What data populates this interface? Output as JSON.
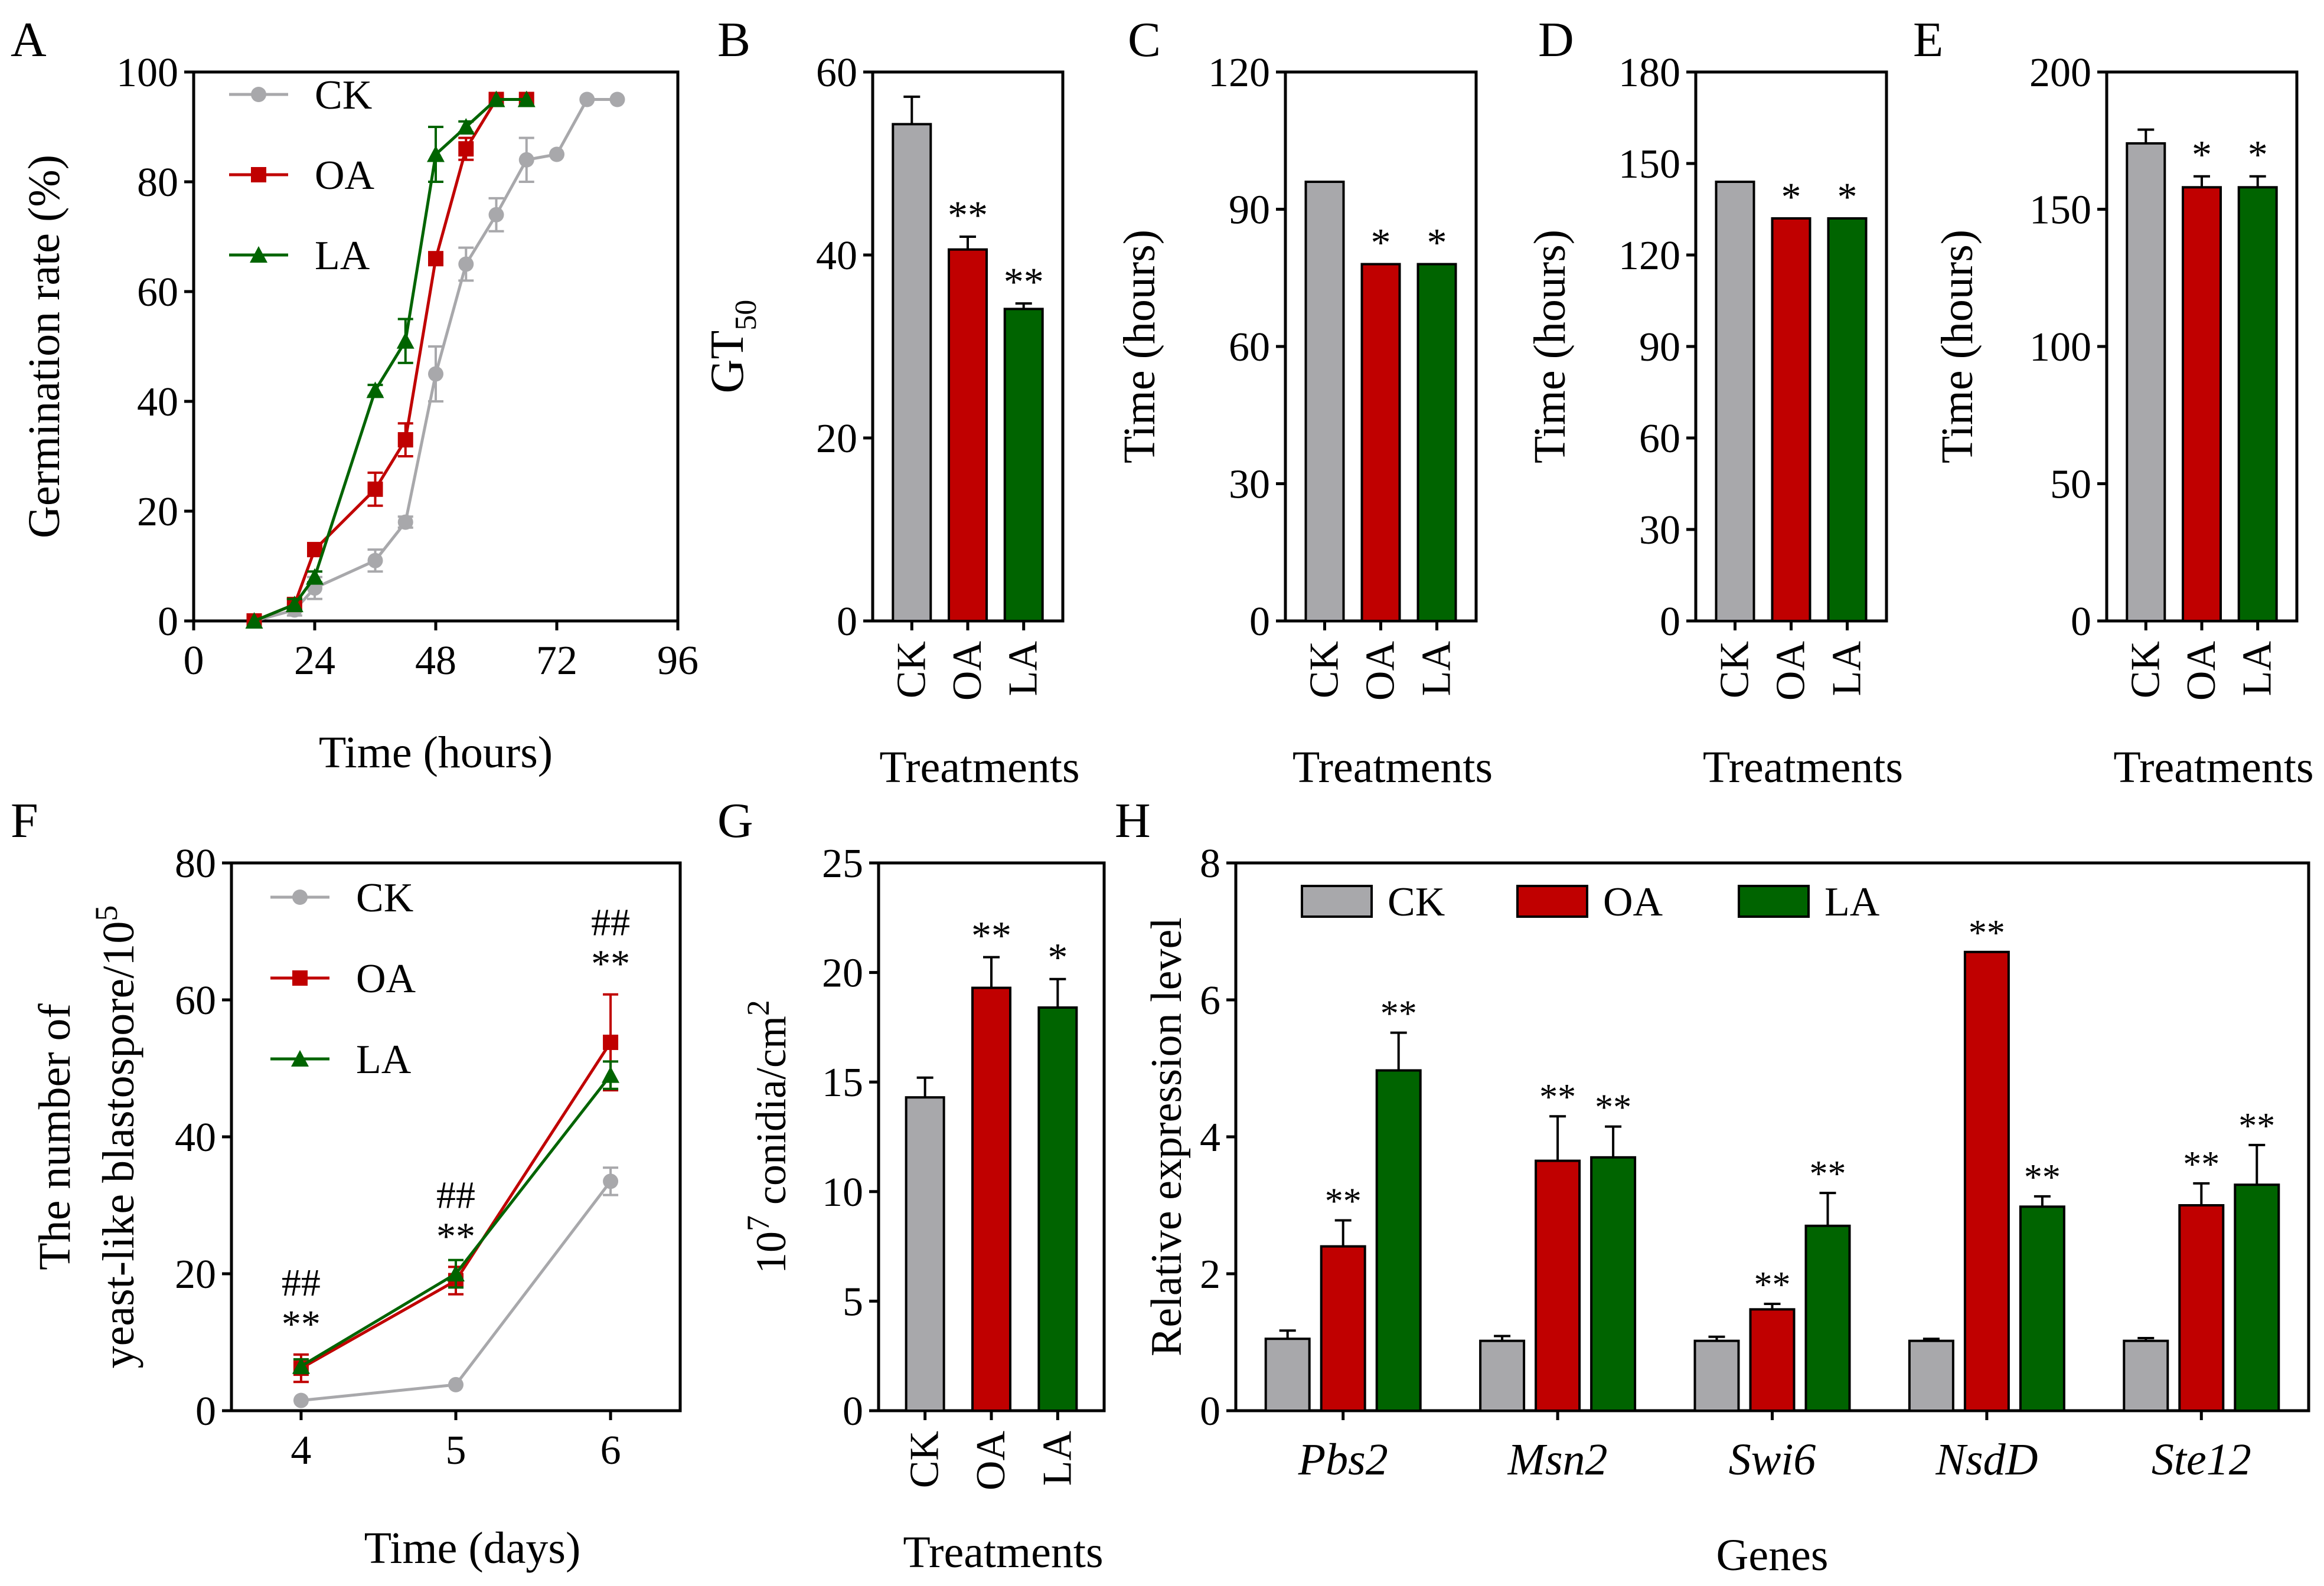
{
  "colors": {
    "CK": "#a8a8ab",
    "OA": "#c00000",
    "LA": "#006400",
    "axis": "#000000"
  },
  "chart_data": [
    {
      "id": "A",
      "type": "line",
      "panel_label": "A",
      "xlabel": "Time (hours)",
      "ylabel": "Germination rate (%)",
      "xlim": [
        0,
        96
      ],
      "ylim": [
        0,
        100
      ],
      "xticks": [
        0,
        24,
        48,
        72,
        96
      ],
      "xtick_labels": [
        "0",
        "24",
        "48",
        "72",
        "96"
      ],
      "yticks": [
        0,
        20,
        40,
        60,
        80,
        100
      ],
      "ytick_labels": [
        "0",
        "20",
        "40",
        "60",
        "80",
        "100"
      ],
      "legend": [
        "CK",
        "OA",
        "LA"
      ],
      "legend_position": "top-left",
      "series": [
        {
          "name": "CK",
          "marker": "circle",
          "x": [
            12,
            20,
            24,
            36,
            42,
            48,
            54,
            60,
            66,
            72,
            78,
            84
          ],
          "y": [
            0,
            2,
            6,
            11,
            18,
            45,
            65,
            74,
            84,
            85,
            95,
            95
          ],
          "err": [
            0,
            1,
            2,
            2,
            1,
            5,
            3,
            3,
            4,
            0,
            0,
            0
          ]
        },
        {
          "name": "OA",
          "marker": "square",
          "x": [
            12,
            20,
            24,
            36,
            42,
            48,
            54,
            60,
            66
          ],
          "y": [
            0,
            3,
            13,
            24,
            33,
            66,
            86,
            95,
            95
          ],
          "err": [
            0,
            1,
            1,
            3,
            3,
            0,
            2,
            0,
            0
          ]
        },
        {
          "name": "LA",
          "marker": "triangle",
          "x": [
            12,
            20,
            24,
            36,
            42,
            48,
            54,
            60,
            66
          ],
          "y": [
            0,
            3,
            8,
            42,
            51,
            85,
            90,
            95,
            95
          ],
          "err": [
            0,
            1,
            1,
            1,
            4,
            5,
            1,
            0,
            0
          ]
        }
      ]
    },
    {
      "id": "B",
      "type": "bar",
      "panel_label": "B",
      "xlabel": "Treatments",
      "ylabel_main": "GT",
      "ylabel_sub": "50",
      "ylim": [
        0,
        60
      ],
      "yticks": [
        0,
        20,
        40,
        60
      ],
      "ytick_labels": [
        "0",
        "20",
        "40",
        "60"
      ],
      "categories": [
        "CK",
        "OA",
        "LA"
      ],
      "values": [
        54.3,
        40.6,
        34.1
      ],
      "err": [
        3.0,
        1.4,
        0.6
      ],
      "annotations": [
        "",
        "**",
        "**"
      ]
    },
    {
      "id": "C",
      "type": "bar",
      "panel_label": "C",
      "xlabel": "Treatments",
      "ylabel": "Time (hours)",
      "ylim": [
        0,
        120
      ],
      "yticks": [
        0,
        30,
        60,
        90,
        120
      ],
      "ytick_labels": [
        "0",
        "30",
        "60",
        "90",
        "120"
      ],
      "categories": [
        "CK",
        "OA",
        "LA"
      ],
      "values": [
        96,
        78,
        78
      ],
      "err": [
        0,
        0,
        0
      ],
      "annotations": [
        "",
        "*",
        "*"
      ]
    },
    {
      "id": "D",
      "type": "bar",
      "panel_label": "D",
      "xlabel": "Treatments",
      "ylabel": "Time (hours)",
      "ylim": [
        0,
        180
      ],
      "yticks": [
        0,
        30,
        60,
        90,
        120,
        150,
        180
      ],
      "ytick_labels": [
        "0",
        "30",
        "60",
        "90",
        "120",
        "150",
        "180"
      ],
      "categories": [
        "CK",
        "OA",
        "LA"
      ],
      "values": [
        144,
        132,
        132
      ],
      "err": [
        0,
        0,
        0
      ],
      "annotations": [
        "",
        "*",
        "*"
      ]
    },
    {
      "id": "E",
      "type": "bar",
      "panel_label": "E",
      "xlabel": "Treatments",
      "ylabel": "Time (hours)",
      "ylim": [
        0,
        200
      ],
      "yticks": [
        0,
        50,
        100,
        150,
        200
      ],
      "ytick_labels": [
        "0",
        "50",
        "100",
        "150",
        "200"
      ],
      "categories": [
        "CK",
        "OA",
        "LA"
      ],
      "values": [
        174,
        158,
        158
      ],
      "err": [
        5,
        4,
        4
      ],
      "annotations": [
        "",
        "*",
        "*"
      ]
    },
    {
      "id": "F",
      "type": "line",
      "panel_label": "F",
      "xlabel": "Time (days)",
      "ylabel_line1": "The number of",
      "ylabel_line2": "yeast-like blastospore/10",
      "ylabel_sup": "5",
      "xlim": [
        3.55,
        6.45
      ],
      "ylim": [
        0,
        80
      ],
      "xticks": [
        4,
        5,
        6
      ],
      "xtick_labels": [
        "4",
        "5",
        "6"
      ],
      "yticks": [
        0,
        20,
        40,
        60,
        80
      ],
      "ytick_labels": [
        "0",
        "20",
        "40",
        "60",
        "80"
      ],
      "legend": [
        "CK",
        "OA",
        "LA"
      ],
      "legend_position": "top-left",
      "series": [
        {
          "name": "CK",
          "marker": "circle",
          "x": [
            4,
            5,
            6
          ],
          "y": [
            1.5,
            3.8,
            33.5
          ],
          "err": [
            0,
            0,
            2
          ]
        },
        {
          "name": "OA",
          "marker": "square",
          "x": [
            4,
            5,
            6
          ],
          "y": [
            6.2,
            19,
            53.8
          ],
          "err": [
            2,
            2,
            7
          ]
        },
        {
          "name": "LA",
          "marker": "triangle",
          "x": [
            4,
            5,
            6
          ],
          "y": [
            6.5,
            20,
            49
          ],
          "err": [
            1,
            2,
            2
          ]
        }
      ],
      "annotations": [
        {
          "x": 4,
          "hash": "##",
          "star": "**"
        },
        {
          "x": 5,
          "hash": "##",
          "star": "**"
        },
        {
          "x": 6,
          "hash": "##",
          "star": "**"
        }
      ]
    },
    {
      "id": "G",
      "type": "bar",
      "panel_label": "G",
      "xlabel": "Treatments",
      "ylabel_pre": "10",
      "ylabel_sup1": "7",
      "ylabel_mid": " conidia/cm",
      "ylabel_sup2": "2",
      "ylim": [
        0,
        25
      ],
      "yticks": [
        0,
        5,
        10,
        15,
        20,
        25
      ],
      "ytick_labels": [
        "0",
        "5",
        "10",
        "15",
        "20",
        "25"
      ],
      "categories": [
        "CK",
        "OA",
        "LA"
      ],
      "values": [
        14.3,
        19.3,
        18.4
      ],
      "err": [
        0.9,
        1.4,
        1.3
      ],
      "annotations": [
        "",
        "**",
        "*"
      ]
    },
    {
      "id": "H",
      "type": "bar",
      "panel_label": "H",
      "xlabel": "Genes",
      "ylabel": "Relative expression level",
      "ylim": [
        0,
        8
      ],
      "yticks": [
        0,
        2,
        4,
        6,
        8
      ],
      "ytick_labels": [
        "0",
        "2",
        "4",
        "6",
        "8"
      ],
      "legend": [
        "CK",
        "OA",
        "LA"
      ],
      "legend_position": "top",
      "categories": [
        "Pbs2",
        "Msn2",
        "Swi6",
        "NsdD",
        "Ste12"
      ],
      "series": [
        {
          "name": "CK",
          "values": [
            1.05,
            1.02,
            1.02,
            1.02,
            1.02
          ],
          "err": [
            0.12,
            0.07,
            0.06,
            0.03,
            0.04
          ],
          "annotations": [
            "",
            "",
            "",
            "",
            ""
          ]
        },
        {
          "name": "OA",
          "values": [
            2.4,
            3.65,
            1.48,
            6.7,
            3.0
          ],
          "err": [
            0.38,
            0.65,
            0.08,
            0,
            0.32
          ],
          "annotations": [
            "**",
            "**",
            "**",
            "**",
            "**"
          ]
        },
        {
          "name": "LA",
          "values": [
            4.97,
            3.7,
            2.7,
            2.98,
            3.3
          ],
          "err": [
            0.55,
            0.45,
            0.48,
            0.15,
            0.58
          ],
          "annotations": [
            "**",
            "**",
            "**",
            "**",
            "**"
          ]
        }
      ]
    }
  ]
}
